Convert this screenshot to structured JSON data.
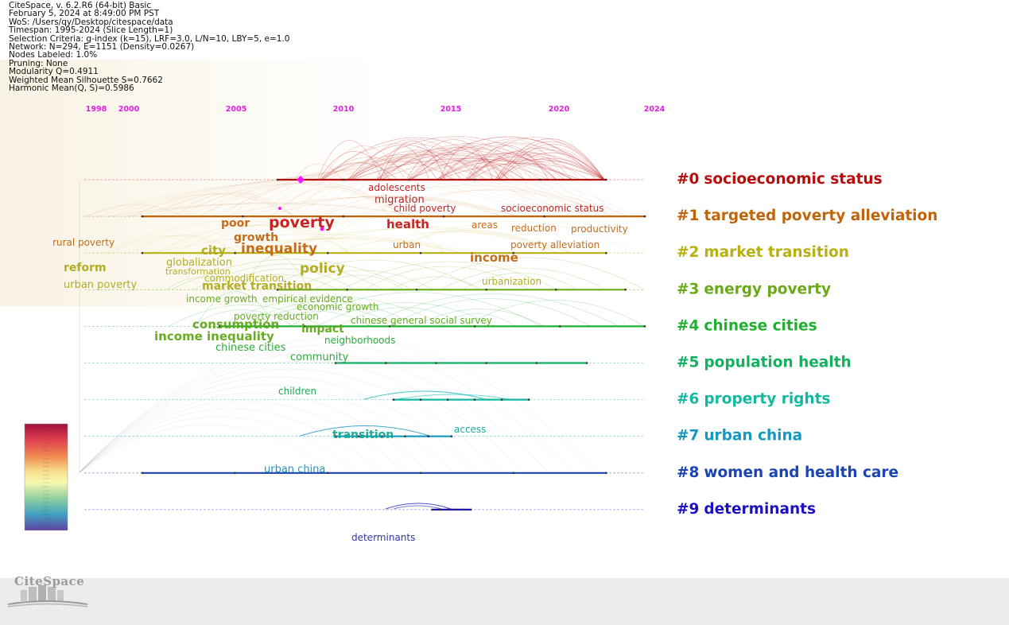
{
  "header_info": [
    "CiteSpace, v. 6.2.R6 (64-bit) Basic",
    "February 5, 2024 at 8:49:00 PM PST",
    "WoS: /Users/qy/Desktop/citespace/data",
    "Timespan: 1995-2024 (Slice Length=1)",
    "Selection Criteria: g-index (k=15), LRF=3.0, L/N=10, LBY=5, e=1.0",
    "Network: N=294, E=1151 (Density=0.0267)",
    "Nodes Labeled: 1.0%",
    "Pruning: None",
    "Modularity Q=0.4911",
    "Weighted Mean Silhouette S=0.7662",
    "Harmonic Mean(Q, S)=0.5986"
  ],
  "timeline": {
    "years": [
      "1998",
      "2000",
      "2005",
      "2010",
      "2015",
      "2020",
      "2024"
    ],
    "year_values": [
      1998,
      2000,
      2005,
      2010,
      2015,
      2020,
      2024
    ],
    "start": 1995,
    "end": 2024,
    "color": "#e020e0"
  },
  "clusters": [
    {
      "id": "#0",
      "label": "socioeconomic status",
      "color": "#b80d0d",
      "start": 2005,
      "end": 2022
    },
    {
      "id": "#1",
      "label": "targeted poverty alleviation",
      "color": "#c0640a",
      "start": 1998,
      "end": 2024
    },
    {
      "id": "#2",
      "label": "market transition",
      "color": "#b8b010",
      "start": 1998,
      "end": 2022
    },
    {
      "id": "#3",
      "label": "energy poverty",
      "color": "#6aaa18",
      "start": 2005,
      "end": 2023
    },
    {
      "id": "#4",
      "label": "chinese cities",
      "color": "#20b030",
      "start": 2002,
      "end": 2024
    },
    {
      "id": "#5",
      "label": "population health",
      "color": "#14b060",
      "start": 2008,
      "end": 2021
    },
    {
      "id": "#6",
      "label": "property rights",
      "color": "#14b8a0",
      "start": 2011,
      "end": 2018
    },
    {
      "id": "#7",
      "label": "urban china",
      "color": "#1598c0",
      "start": 2008,
      "end": 2014
    },
    {
      "id": "#8",
      "label": "women and health care",
      "color": "#1a44b0",
      "start": 1998,
      "end": 2022
    },
    {
      "id": "#9",
      "label": "determinants",
      "color": "#1c10c0",
      "start": 2013,
      "end": 2015
    }
  ],
  "keywords": [
    {
      "text": "adolescents",
      "color": "#b81a1a",
      "size": 12
    },
    {
      "text": "migration",
      "color": "#b81a1a",
      "size": 13
    },
    {
      "text": "child poverty",
      "color": "#b81a1a",
      "size": 12
    },
    {
      "text": "socioeconomic status",
      "color": "#b81a1a",
      "size": 12
    },
    {
      "text": "poor",
      "color": "#c06410",
      "size": 14
    },
    {
      "text": "poverty",
      "color": "#c41818",
      "size": 19
    },
    {
      "text": "health",
      "color": "#c41818",
      "size": 15
    },
    {
      "text": "areas",
      "color": "#c06410",
      "size": 12
    },
    {
      "text": "reduction",
      "color": "#c06410",
      "size": 12
    },
    {
      "text": "productivity",
      "color": "#c06410",
      "size": 12
    },
    {
      "text": "rural poverty",
      "color": "#c06410",
      "size": 12
    },
    {
      "text": "growth",
      "color": "#c06410",
      "size": 14
    },
    {
      "text": "urban",
      "color": "#c06410",
      "size": 12
    },
    {
      "text": "poverty alleviation",
      "color": "#c06410",
      "size": 12
    },
    {
      "text": "city",
      "color": "#b0a818",
      "size": 15
    },
    {
      "text": "inequality",
      "color": "#c06410",
      "size": 17
    },
    {
      "text": "income",
      "color": "#c06410",
      "size": 15
    },
    {
      "text": "reform",
      "color": "#b0a818",
      "size": 14
    },
    {
      "text": "globalization",
      "color": "#b0a818",
      "size": 13
    },
    {
      "text": "transformation",
      "color": "#b0a818",
      "size": 11
    },
    {
      "text": "policy",
      "color": "#b0a818",
      "size": 17
    },
    {
      "text": "commodification",
      "color": "#b0a818",
      "size": 12
    },
    {
      "text": "urban poverty",
      "color": "#b0a818",
      "size": 13
    },
    {
      "text": "market transition",
      "color": "#b0a818",
      "size": 14
    },
    {
      "text": "urbanization",
      "color": "#b0a818",
      "size": 12
    },
    {
      "text": "income growth",
      "color": "#60a818",
      "size": 12
    },
    {
      "text": "empirical evidence",
      "color": "#60a818",
      "size": 12
    },
    {
      "text": "economic growth",
      "color": "#60a818",
      "size": 12
    },
    {
      "text": "poverty reduction",
      "color": "#60a818",
      "size": 12
    },
    {
      "text": "consumption",
      "color": "#60a818",
      "size": 15
    },
    {
      "text": "impact",
      "color": "#60a818",
      "size": 14
    },
    {
      "text": "chinese general social survey",
      "color": "#60a818",
      "size": 12
    },
    {
      "text": "income inequality",
      "color": "#60a818",
      "size": 15
    },
    {
      "text": "neighborhoods",
      "color": "#20a830",
      "size": 12
    },
    {
      "text": "chinese cities",
      "color": "#20a830",
      "size": 13
    },
    {
      "text": "community",
      "color": "#20a830",
      "size": 13
    },
    {
      "text": "children",
      "color": "#14a050",
      "size": 12
    },
    {
      "text": "transition",
      "color": "#14a890",
      "size": 14
    },
    {
      "text": "access",
      "color": "#14a890",
      "size": 12
    },
    {
      "text": "urban china",
      "color": "#1590b8",
      "size": 13
    },
    {
      "text": "determinants",
      "color": "#2828a8",
      "size": 12
    }
  ]
}
